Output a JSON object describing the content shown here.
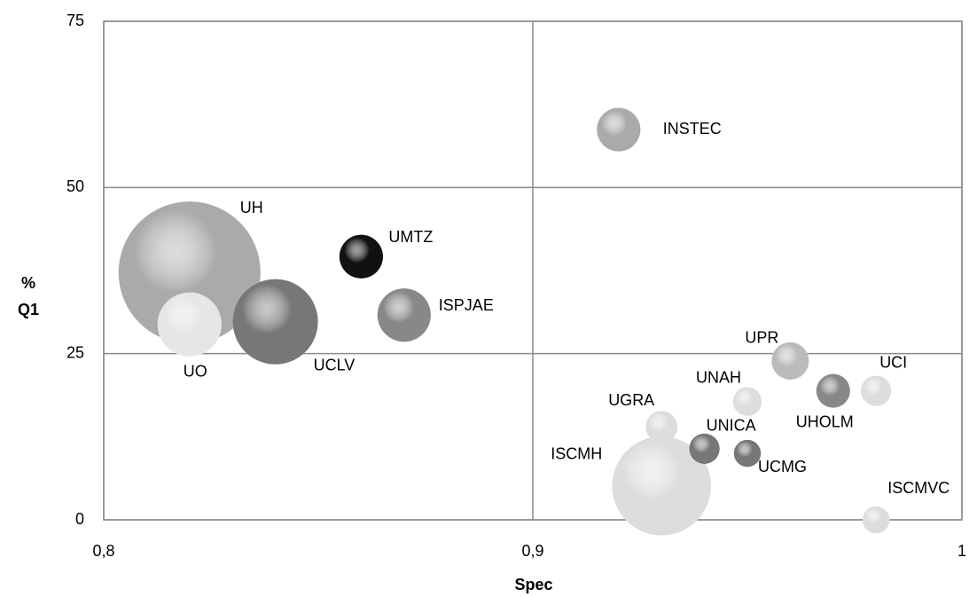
{
  "chart_data": {
    "type": "bubble",
    "x_label": "Spec",
    "y_label": "% Q1",
    "labels": [
      "UH",
      "ISCMH",
      "UCLV",
      "UO",
      "ISPJAE",
      "INSTEC",
      "UMTZ",
      "UPR",
      "UHOLM",
      "UGRA",
      "UCI",
      "UNICA",
      "UNAH",
      "UCMG",
      "ISCMVC"
    ],
    "x": [
      0.82,
      0.93,
      0.84,
      0.82,
      0.87,
      0.92,
      0.86,
      0.96,
      0.97,
      0.93,
      0.98,
      0.94,
      0.95,
      0.95,
      0.98
    ],
    "values": [
      37.2,
      5.1,
      29.8,
      29.4,
      30.8,
      58.7,
      39.6,
      23.9,
      19.4,
      14,
      19.4,
      10.7,
      17.8,
      10,
      0
    ],
    "sizes": [
      64,
      31,
      23,
      13,
      9,
      6,
      6,
      4.4,
      3.6,
      3.2,
      2.9,
      2.9,
      2.6,
      2.3,
      2.3
    ],
    "colors": [
      "#aaaaaa",
      "#dddddd",
      "#777777",
      "#e6e6e6",
      "#888888",
      "#aaaaaa",
      "#111111",
      "#bbbbbb",
      "#888888",
      "#dddddd",
      "#dddddd",
      "#777777",
      "#dddddd",
      "#777777",
      "#dddddd"
    ],
    "xlim": [
      0.8,
      1
    ],
    "xticks": [
      {
        "value": 0.8,
        "label": "0,8"
      },
      {
        "value": 0.9,
        "label": "0,9"
      },
      1
    ],
    "ylim": [
      0,
      75
    ],
    "yticks": [
      0,
      25,
      50,
      75
    ],
    "grid": true
  }
}
